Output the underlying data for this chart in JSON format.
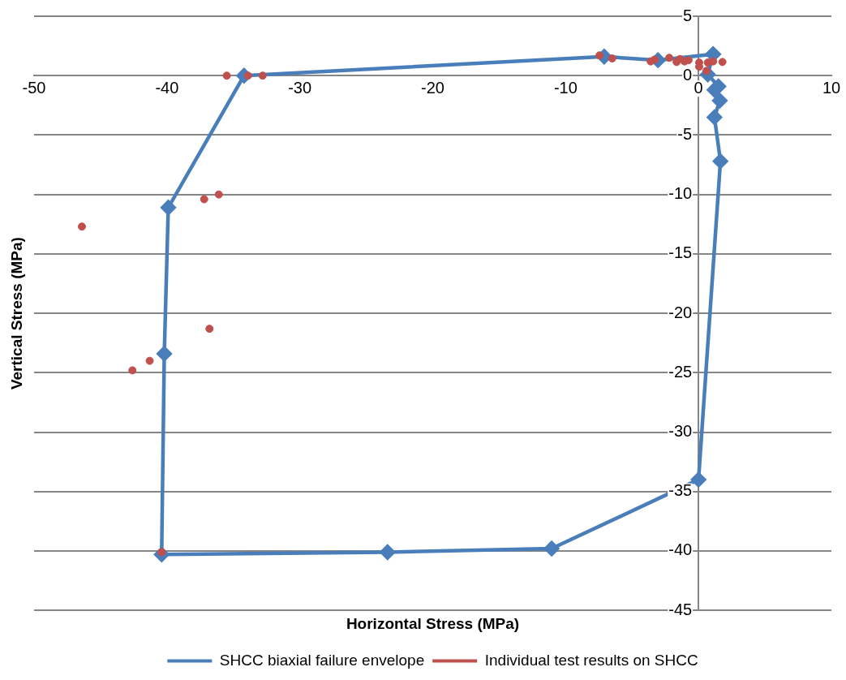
{
  "chart_data": {
    "type": "scatter",
    "xlabel": "Horizontal Stress (MPa)",
    "ylabel": "Vertical Stress (MPa)",
    "xlim": [
      -50,
      10
    ],
    "xticks": [
      -50,
      -40,
      -30,
      -20,
      -10,
      0,
      10
    ],
    "ylim": [
      -45,
      5
    ],
    "yticks": [
      5,
      0,
      -5,
      -10,
      -15,
      -20,
      -25,
      -30,
      -35,
      -40,
      -45
    ],
    "grid": "y",
    "legend": "bottom",
    "series": [
      {
        "name": "SHCC biaxial failure envelope",
        "color": "#4a7ebb",
        "marker": "diamond",
        "line_style": "solid",
        "x": [
          1.1,
          0.7,
          1.5,
          1.2,
          1.6,
          1.2,
          1.65,
          0,
          -11.05,
          -23.4,
          -40.4,
          -40.2,
          -39.9,
          -34.2,
          -7.1,
          -3.05,
          1.1
        ],
        "values": [
          1.8,
          0.1,
          -0.9,
          -1.2,
          -2.1,
          -3.5,
          -7.2,
          -34,
          -39.8,
          -40.1,
          -40.3,
          -23.4,
          -11.1,
          0,
          1.6,
          1.3,
          1.8
        ]
      },
      {
        "name": "Individual test results on SHCC",
        "color": "#c0504d",
        "marker": "circle",
        "x": [
          -46.4,
          -37.2,
          -36.1,
          -36.8,
          -41.3,
          -42.6,
          -40.4,
          -35.5,
          -33.9,
          -32.8,
          -7.45,
          -6.5,
          -3.6,
          -3.3,
          -2.2,
          -1.65,
          -1.4,
          -1.05,
          -0.75,
          0.05,
          0.05,
          0.6,
          0.7,
          1.1,
          1.8
        ],
        "values": [
          -12.7,
          -10.4,
          -10.0,
          -21.3,
          -24.0,
          -24.8,
          -40.1,
          0,
          0,
          0,
          1.7,
          1.45,
          1.2,
          1.35,
          1.5,
          1.15,
          1.4,
          1.2,
          1.3,
          1.1,
          0.75,
          0.4,
          1.1,
          1.2,
          1.15
        ]
      }
    ]
  }
}
